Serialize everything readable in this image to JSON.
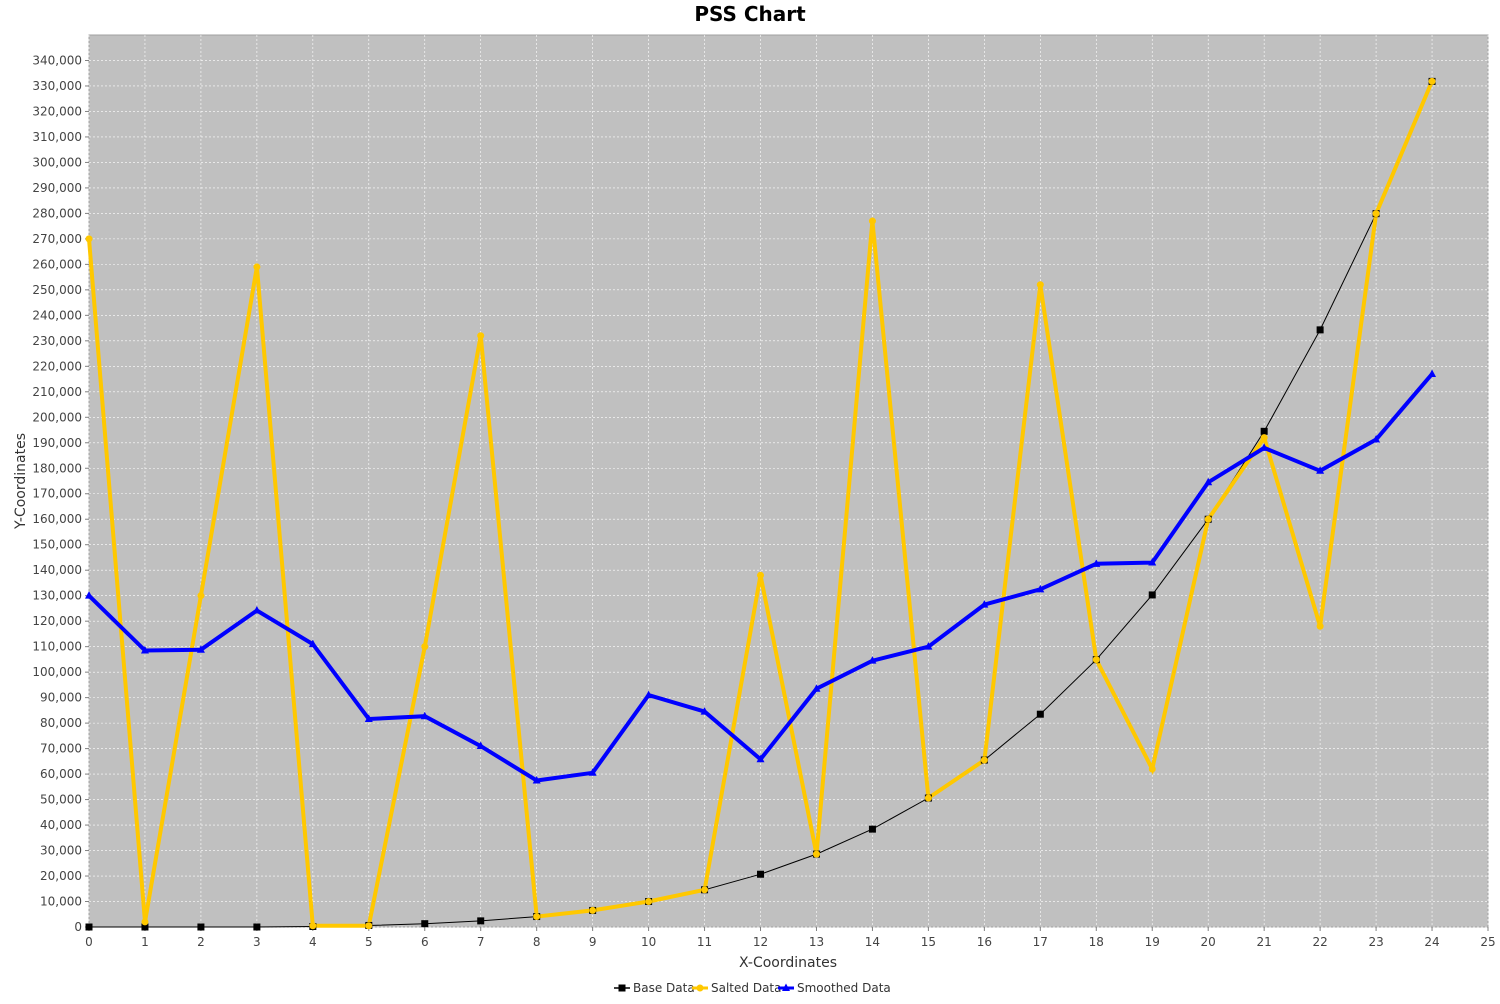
{
  "chart_data": {
    "type": "line",
    "title": "PSS Chart",
    "xlabel": "X-Coordinates",
    "ylabel": "Y-Coordinates",
    "xlim": [
      0,
      25
    ],
    "ylim": [
      0,
      350000
    ],
    "x_ticks": [
      0,
      1,
      2,
      3,
      4,
      5,
      6,
      7,
      8,
      9,
      10,
      11,
      12,
      13,
      14,
      15,
      16,
      17,
      18,
      19,
      20,
      21,
      22,
      23,
      24,
      25
    ],
    "y_ticks": [
      0,
      10000,
      20000,
      30000,
      40000,
      50000,
      60000,
      70000,
      80000,
      90000,
      100000,
      110000,
      120000,
      130000,
      140000,
      150000,
      160000,
      170000,
      180000,
      190000,
      200000,
      210000,
      220000,
      230000,
      240000,
      250000,
      260000,
      270000,
      280000,
      290000,
      300000,
      310000,
      320000,
      330000,
      340000
    ],
    "y_tick_labels": [
      "0",
      "10,000",
      "20,000",
      "30,000",
      "40,000",
      "50,000",
      "60,000",
      "70,000",
      "80,000",
      "90,000",
      "100,000",
      "110,000",
      "120,000",
      "130,000",
      "140,000",
      "150,000",
      "160,000",
      "170,000",
      "180,000",
      "190,000",
      "200,000",
      "210,000",
      "220,000",
      "230,000",
      "240,000",
      "250,000",
      "260,000",
      "270,000",
      "280,000",
      "290,000",
      "300,000",
      "310,000",
      "320,000",
      "330,000",
      "340,000"
    ],
    "grid": true,
    "legend_position": "bottom",
    "background": "#c0c0c0",
    "x": [
      0,
      1,
      2,
      3,
      4,
      5,
      6,
      7,
      8,
      9,
      10,
      11,
      12,
      13,
      14,
      15,
      16,
      17,
      18,
      19,
      20,
      21,
      22,
      23,
      24
    ],
    "series": [
      {
        "name": "Base Data",
        "color": "#000000",
        "marker": "square",
        "values": [
          0,
          0,
          0,
          0,
          200,
          600,
          1300,
          2400,
          4100,
          6500,
          10000,
          14600,
          20700,
          28600,
          38400,
          50600,
          65500,
          83500,
          104900,
          130300,
          160000,
          194500,
          234300,
          279900,
          331800
        ]
      },
      {
        "name": "Salted Data",
        "color": "#ffc800",
        "marker": "circle",
        "values": [
          270000,
          2000,
          130000,
          259000,
          500,
          500,
          110000,
          232000,
          4100,
          6500,
          10000,
          14600,
          138000,
          28600,
          277000,
          50600,
          65500,
          252000,
          104900,
          62000,
          160000,
          192000,
          118000,
          279900,
          331800
        ]
      },
      {
        "name": "Smoothed Data",
        "color": "#0000ff",
        "marker": "triangle",
        "values": [
          130000,
          108500,
          108800,
          124200,
          111000,
          81600,
          82700,
          71000,
          57500,
          60500,
          91000,
          84500,
          65800,
          93500,
          104500,
          110000,
          126500,
          132500,
          142500,
          143000,
          174500,
          188000,
          179000,
          191300,
          217000
        ]
      }
    ]
  }
}
